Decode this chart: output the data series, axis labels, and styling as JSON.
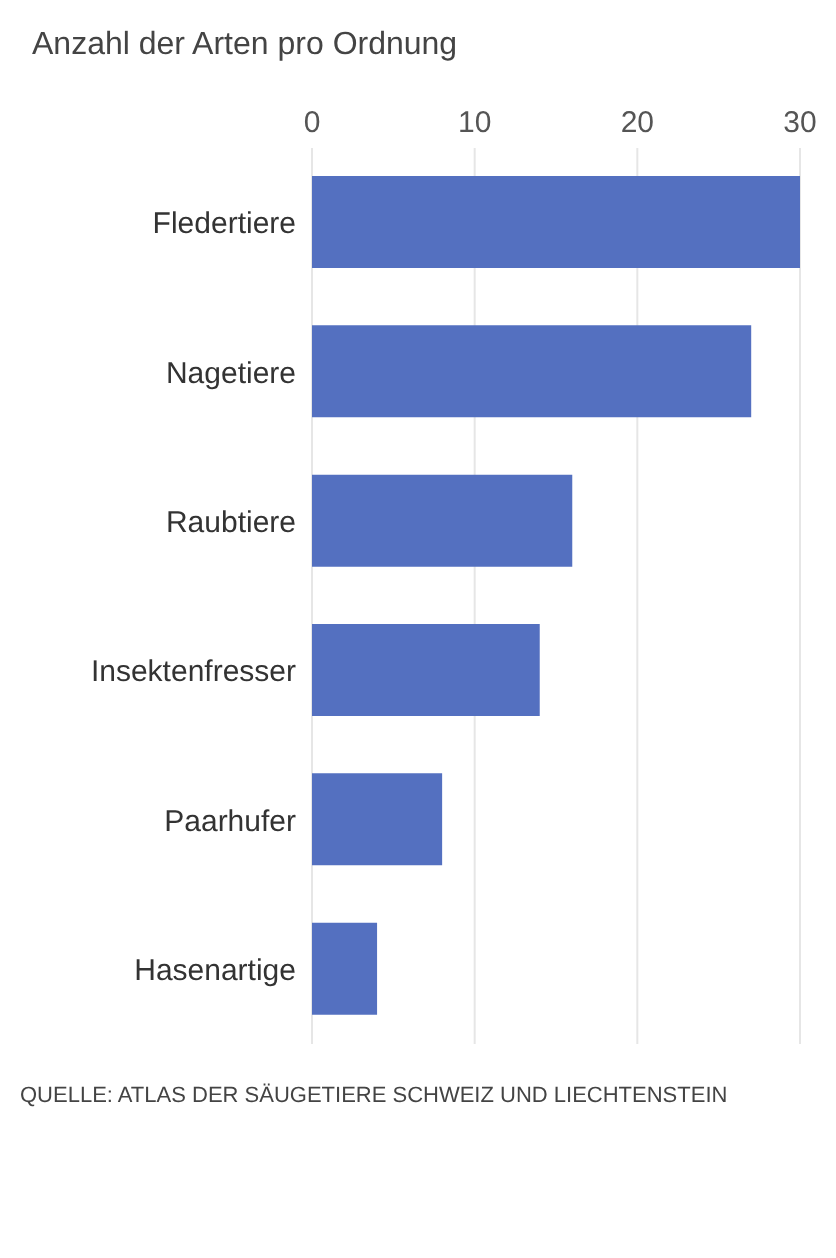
{
  "chart_data": {
    "type": "bar",
    "orientation": "horizontal",
    "title": "Anzahl der Arten pro Ordnung",
    "categories": [
      "Fledertiere",
      "Nagetiere",
      "Raubtiere",
      "Insektenfresser",
      "Paarhufer",
      "Hasenartige"
    ],
    "values": [
      30,
      27,
      16,
      14,
      8,
      4
    ],
    "color": "#5470c0",
    "xlim": [
      0,
      30
    ],
    "xticks": [
      0,
      10,
      20,
      30
    ],
    "grid": "x",
    "annotations": [
      "QUELLE: ATLAS DER SÄUGETIERE SCHWEIZ UND LIECHTENSTEIN"
    ]
  }
}
